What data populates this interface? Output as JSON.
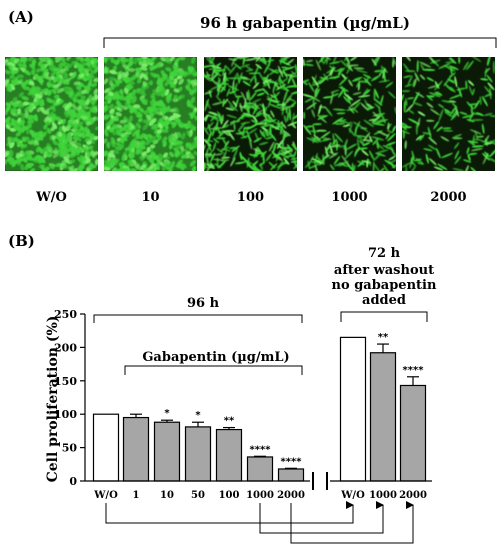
{
  "panel_a": {
    "label": "(A)",
    "header": "96 h gabapentin (µg/mL)",
    "panels": [
      {
        "caption": "W/O",
        "density": 1.0
      },
      {
        "caption": "10",
        "density": 0.88
      },
      {
        "caption": "100",
        "density": 0.55
      },
      {
        "caption": "1000",
        "density": 0.3
      },
      {
        "caption": "2000",
        "density": 0.18
      }
    ],
    "colors": {
      "background": "#0a1a06",
      "cells": "#3fd43a",
      "cells_bright": "#7cf06a"
    }
  },
  "panel_b": {
    "label": "(B)",
    "left_group_label": "96 h",
    "inner_bracket_label": "Gabapentin (µg/mL)",
    "right_group_label": [
      "72 h",
      "after washout",
      "no gabapentin",
      "added"
    ]
  },
  "chart_data": {
    "type": "bar",
    "ylabel": "Cell proliferation (%)",
    "ylim": [
      0,
      250
    ],
    "yticks": [
      0,
      50,
      100,
      150,
      200,
      250
    ],
    "groups": [
      {
        "label": "96 h",
        "categories": [
          "W/O",
          "1",
          "10",
          "50",
          "100",
          "1000",
          "2000"
        ],
        "values": [
          100,
          95,
          88,
          81,
          77,
          36,
          18
        ],
        "errors": [
          0,
          5,
          3,
          7,
          3,
          1,
          1
        ],
        "significance": [
          "",
          "",
          "*",
          "*",
          "**",
          "****",
          "****"
        ],
        "fills": [
          "#ffffff",
          "#a6a6a6",
          "#a6a6a6",
          "#a6a6a6",
          "#a6a6a6",
          "#a6a6a6",
          "#a6a6a6"
        ]
      },
      {
        "label": "72 h after washout no gabapentin added",
        "categories": [
          "W/O",
          "1000",
          "2000"
        ],
        "values": [
          215,
          192,
          143
        ],
        "errors": [
          0,
          13,
          13
        ],
        "significance": [
          "",
          "**",
          "****"
        ],
        "fills": [
          "#ffffff",
          "#a6a6a6",
          "#a6a6a6"
        ]
      }
    ],
    "arrows": [
      {
        "from": "W/O",
        "to": "W/O"
      },
      {
        "from": "1000",
        "to": "1000"
      },
      {
        "from": "2000",
        "to": "2000"
      }
    ]
  }
}
